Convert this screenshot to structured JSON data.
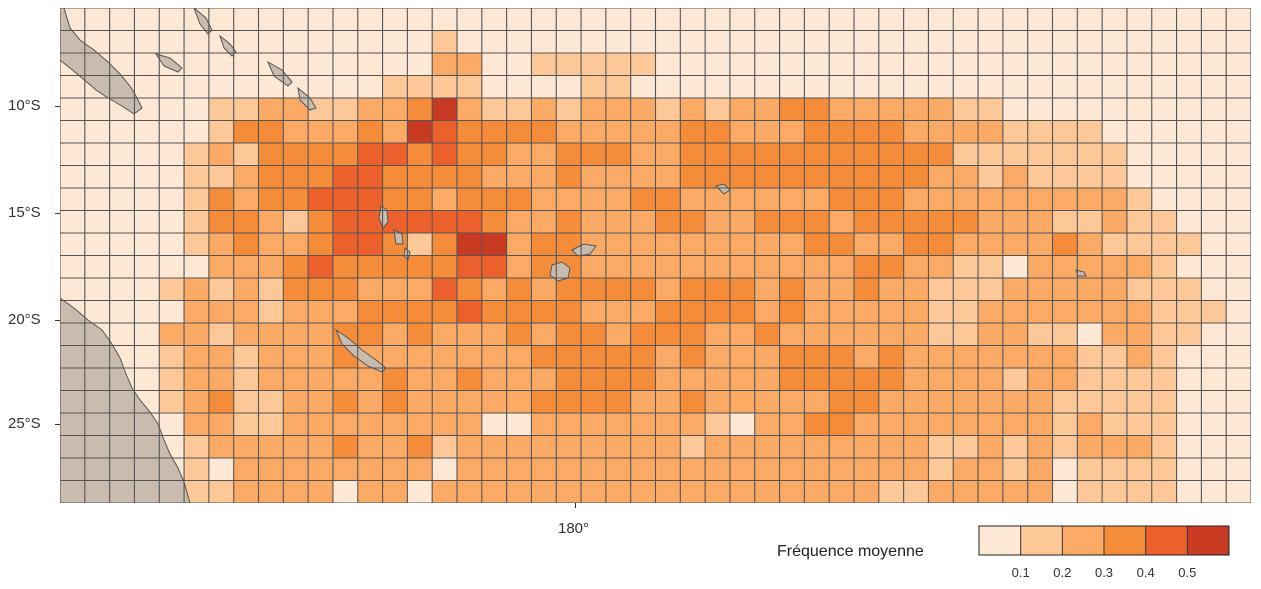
{
  "map": {
    "y_axis_labels": [
      "10°S",
      "15°S",
      "20°S",
      "25°S"
    ],
    "x_axis_labels": [
      "180°"
    ],
    "colors": {
      "land": "#c9bcae",
      "coastline": "#555555",
      "grid": "#555555",
      "background": "#fde7d5"
    }
  },
  "legend": {
    "title": "Fréquence moyenne",
    "tick_labels": [
      "0.1",
      "0.2",
      "0.3",
      "0.4",
      "0.5"
    ],
    "classes": [
      "#fde7d5",
      "#fdc897",
      "#fbaa65",
      "#f58c3a",
      "#ec602c",
      "#c83a22"
    ]
  },
  "chart_data": {
    "type": "heatmap",
    "title": "",
    "xlabel": "",
    "ylabel": "",
    "value_label": "Fréquence moyenne",
    "legend_ticks": [
      0.1,
      0.2,
      0.3,
      0.4,
      0.5
    ],
    "rows_top_to_bottom": [
      "000000000000000000000000000000000000000000000000",
      "000000000000000100000000000000000000000000000000",
      "000000000000000220011111000000000000000000000000",
      "000000000000011110000110000000000000000000000000",
      "000000112211223521121222121223322222110000000000",
      "000000133222325433332222233222333322221111000000",
      "000001213333443433223332233333333333111111100000",
      "000001123334433332223222233333333332212111100000",
      "000001323344433233322223322222233322222222210000",
      "000001332134444443223222332233323333322211211000",
      "000001232234431355233222222222332233222232111100",
      "000000222343333344233222222222223322110222221000",
      "000012121333222432323333233323223221112222211100",
      "000002221222333343333222333323222221122222221110",
      "000022122223323222323323332232222221122110221100",
      "000012212223222222233333232223332322222221121000",
      "000012212222232232223333222223333322221221111000",
      "000012311223232222233332232222233222222211111000",
      "000002211222222220022222221022332222222212111000",
      "000001222223223122222222212222222221121212221000",
      "000001022222222022222222222222222221221201111000",
      "000001122220220222222222222222222112222201111000"
    ]
  }
}
